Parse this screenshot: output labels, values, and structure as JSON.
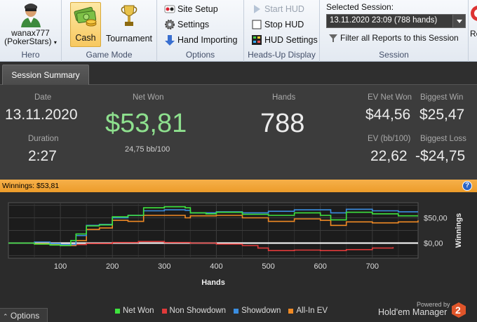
{
  "ribbon": {
    "hero": {
      "name": "wanax777",
      "site": "(PokerStars)",
      "group_label": "Hero"
    },
    "game_mode": {
      "cash_label": "Cash",
      "tournament_label": "Tournament",
      "group_label": "Game Mode"
    },
    "options": {
      "site_setup": "Site Setup",
      "settings": "Settings",
      "hand_importing": "Hand Importing",
      "group_label": "Options"
    },
    "hud": {
      "start": "Start HUD",
      "stop": "Stop HUD",
      "hud_settings": "HUD Settings",
      "group_label": "Heads-Up Display"
    },
    "session": {
      "label": "Selected Session:",
      "selected": "13.11.2020 23:09 (788 hands)",
      "filter": "Filter all Reports to this Session",
      "group_label": "Session",
      "reports_label": "Re"
    }
  },
  "tabs": [
    {
      "label": "Session Summary"
    }
  ],
  "summary": {
    "date_label": "Date",
    "date": "13.11.2020",
    "duration_label": "Duration",
    "duration": "2:27",
    "net_won_label": "Net Won",
    "net_won": "$53,81",
    "net_won_bb": "24,75 bb/100",
    "hands_label": "Hands",
    "hands": "788",
    "ev_net_won_label": "EV Net Won",
    "ev_net_won": "$44,56",
    "biggest_win_label": "Biggest Win",
    "biggest_win": "$25,47",
    "ev_bb_label": "EV (bb/100)",
    "ev_bb": "22,62",
    "biggest_loss_label": "Biggest Loss",
    "biggest_loss": "-$24,75"
  },
  "winnings_bar": {
    "text": "Winnings: $53,81",
    "help": "?"
  },
  "options_button": {
    "label": "Options"
  },
  "branding": {
    "powered_by": "Powered by",
    "product": "Hold'em Manager",
    "version_badge": "2"
  },
  "colors": {
    "net_won": "#3ee33e",
    "non_showdown": "#e03a3a",
    "showdown": "#3a8de0",
    "all_in_ev": "#f08a24",
    "net_won_text": "#8ee08e"
  },
  "chart_data": {
    "type": "line",
    "xlabel": "Hands",
    "ylabel": "Winnings",
    "xlim": [
      0,
      788
    ],
    "ylim": [
      -30,
      80
    ],
    "x_ticks": [
      "100",
      "200",
      "300",
      "400",
      "500",
      "600",
      "700"
    ],
    "y_ticks": [
      "$50,00",
      "$0,00"
    ],
    "grid": true,
    "legend_position": "bottom",
    "series": [
      {
        "name": "Net Won",
        "x": [
          0,
          50,
          80,
          100,
          120,
          130,
          150,
          175,
          200,
          230,
          260,
          300,
          340,
          350,
          380,
          400,
          450,
          500,
          520,
          550,
          600,
          620,
          650,
          700,
          750,
          788
        ],
        "y": [
          0,
          -2,
          -4,
          -5,
          5,
          18,
          34,
          36,
          52,
          55,
          70,
          72,
          70,
          60,
          58,
          61,
          57,
          55,
          55,
          60,
          55,
          46,
          61,
          58,
          54,
          54
        ]
      },
      {
        "name": "Non Showdown",
        "x": [
          0,
          50,
          100,
          150,
          200,
          250,
          300,
          350,
          400,
          450,
          480,
          500,
          550,
          600,
          650,
          700,
          740
        ],
        "y": [
          0,
          -2,
          -3,
          -1,
          1,
          3,
          1,
          0,
          -2,
          -5,
          -10,
          -15,
          -14,
          -15,
          -13,
          -10,
          -8
        ]
      },
      {
        "name": "Showdown",
        "x": [
          0,
          50,
          80,
          100,
          130,
          150,
          175,
          200,
          230,
          260,
          300,
          340,
          350,
          400,
          450,
          500,
          550,
          600,
          620,
          650,
          700,
          750,
          788
        ],
        "y": [
          0,
          2,
          -1,
          -3,
          15,
          35,
          37,
          50,
          55,
          64,
          66,
          65,
          60,
          62,
          60,
          63,
          66,
          66,
          60,
          67,
          64,
          62,
          62
        ]
      },
      {
        "name": "All-In EV",
        "x": [
          0,
          50,
          80,
          100,
          130,
          150,
          175,
          200,
          230,
          260,
          300,
          340,
          350,
          400,
          450,
          500,
          550,
          600,
          620,
          650,
          700,
          750,
          788
        ],
        "y": [
          0,
          -1,
          -3,
          -5,
          5,
          27,
          30,
          45,
          43,
          55,
          55,
          50,
          54,
          55,
          50,
          43,
          48,
          45,
          35,
          42,
          40,
          42,
          45
        ]
      }
    ]
  }
}
